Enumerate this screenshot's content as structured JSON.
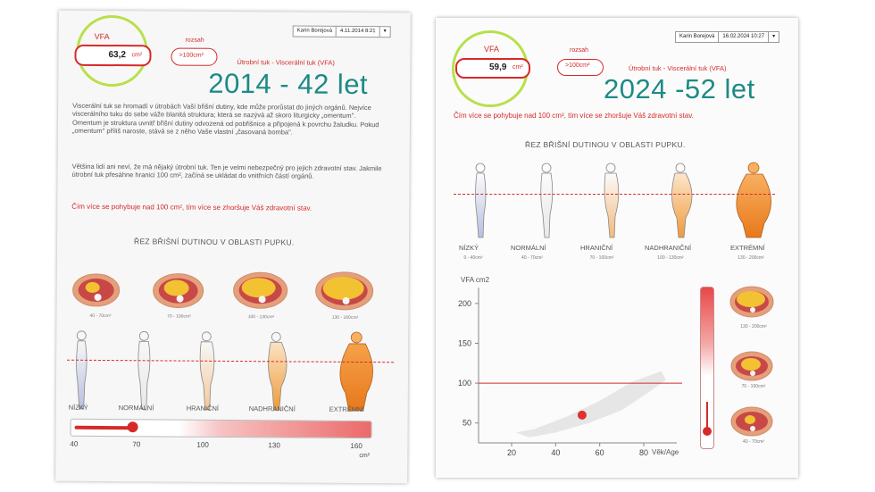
{
  "left": {
    "header": {
      "name": "Karin Borejová",
      "date": "4.11.2014 8:21",
      "dropdown_icon": "triangle-down-icon"
    },
    "vfa_label": "VFA",
    "vfa_value": "63,2",
    "vfa_unit": "cm²",
    "range_label": "rozsah",
    "range_value": ">100cm²",
    "subtitle": "Útrobní tuk - Viscerální tuk (VFA)",
    "year_overlay": "2014 - 42 let",
    "paragraphs": [
      "Viscerální tuk se hromadí v útrobách Vaší břišní dutiny, kde může prorůstat do jiných orgánů. Nejvíce viscerálního tuku do sebe váže blanitá struktura; která se nazývá až skoro liturgicky „omentum\". Omentum je struktura uvnitř břišní dutiny odvozená od pobřišnice a připojená k povrchu žaludku. Pokud „omentum\" příliš naroste, stává se z něho Vaše vlastní „časovaná bomba\".",
      "Většina lidí ani neví, že má nějaký útrobní tuk. Ten je velmi nebezpečný pro jejich zdravotní stav. Jakmile útrobní tuk přesáhne hranici 100 cm², začíná se ukládat do vnitřních částí orgánů."
    ],
    "warning": "Čím více se pohybuje nad 100 cm², tím více se zhoršuje Váš zdravotní stav.",
    "section_title": "ŘEZ BŘIŠNÍ DUTINOU V OBLASTI PUPKU.",
    "cross_sections": [
      "40 - 70cm²",
      "70 - 100cm²",
      "100 - 130cm²",
      "130 - 160cm²"
    ],
    "categories": [
      "NÍZKÝ",
      "NORMÁLNÍ",
      "HRANIČNÍ",
      "NADHRANIČNÍ",
      "EXTRÉMNÍ"
    ],
    "scale_ticks": [
      "40",
      "70",
      "100",
      "130",
      "160"
    ],
    "scale_unit": "cm²",
    "slider_value": 63.2,
    "slider_min": 40,
    "slider_max": 160
  },
  "right": {
    "header": {
      "name": "Karin Borejová",
      "date": "16.02.2024 10:27",
      "dropdown_icon": "triangle-down-icon"
    },
    "vfa_label": "VFA",
    "vfa_value": "59,9",
    "vfa_unit": "cm²",
    "range_label": "rozsah",
    "range_value": ">100cm²",
    "subtitle": "Útrobní tuk - Viscerální tuk (VFA)",
    "year_overlay": "2024 -52 let",
    "warning": "Čím více se pohybuje nad 100 cm², tím více se zhoršuje Váš zdravotní stav.",
    "section_title": "ŘEZ BŘIŠNÍ DUTINOU V OBLASTI PUPKU.",
    "categories": [
      {
        "name": "NÍZKÝ",
        "range": "0 - 40cm²"
      },
      {
        "name": "NORMÁLNÍ",
        "range": "40 - 70cm²"
      },
      {
        "name": "HRANIČNÍ",
        "range": "70 - 100cm²"
      },
      {
        "name": "NADHRANIČNÍ",
        "range": "100 - 130cm²"
      },
      {
        "name": "EXTRÉMNÍ",
        "range": "130 - 200cm²"
      }
    ],
    "side_cross_sections": [
      "130 - 200cm²",
      "70 - 100cm²",
      "40 - 70cm²"
    ],
    "vertical_scale_value": 59.9
  },
  "chart_data": {
    "type": "scatter",
    "ylabel": "VFA cm2",
    "xlabel": "Věk/Age",
    "x_ticks": [
      20,
      40,
      60,
      80
    ],
    "y_ticks": [
      50,
      100,
      150,
      200
    ],
    "xlim": [
      5,
      95
    ],
    "ylim": [
      25,
      220
    ],
    "threshold": 100,
    "points": [
      {
        "x": 52,
        "y": 59.9
      }
    ],
    "colors": {
      "point": "#e03030",
      "threshold": "#d62a2a",
      "band": "#e6e6e6"
    }
  }
}
